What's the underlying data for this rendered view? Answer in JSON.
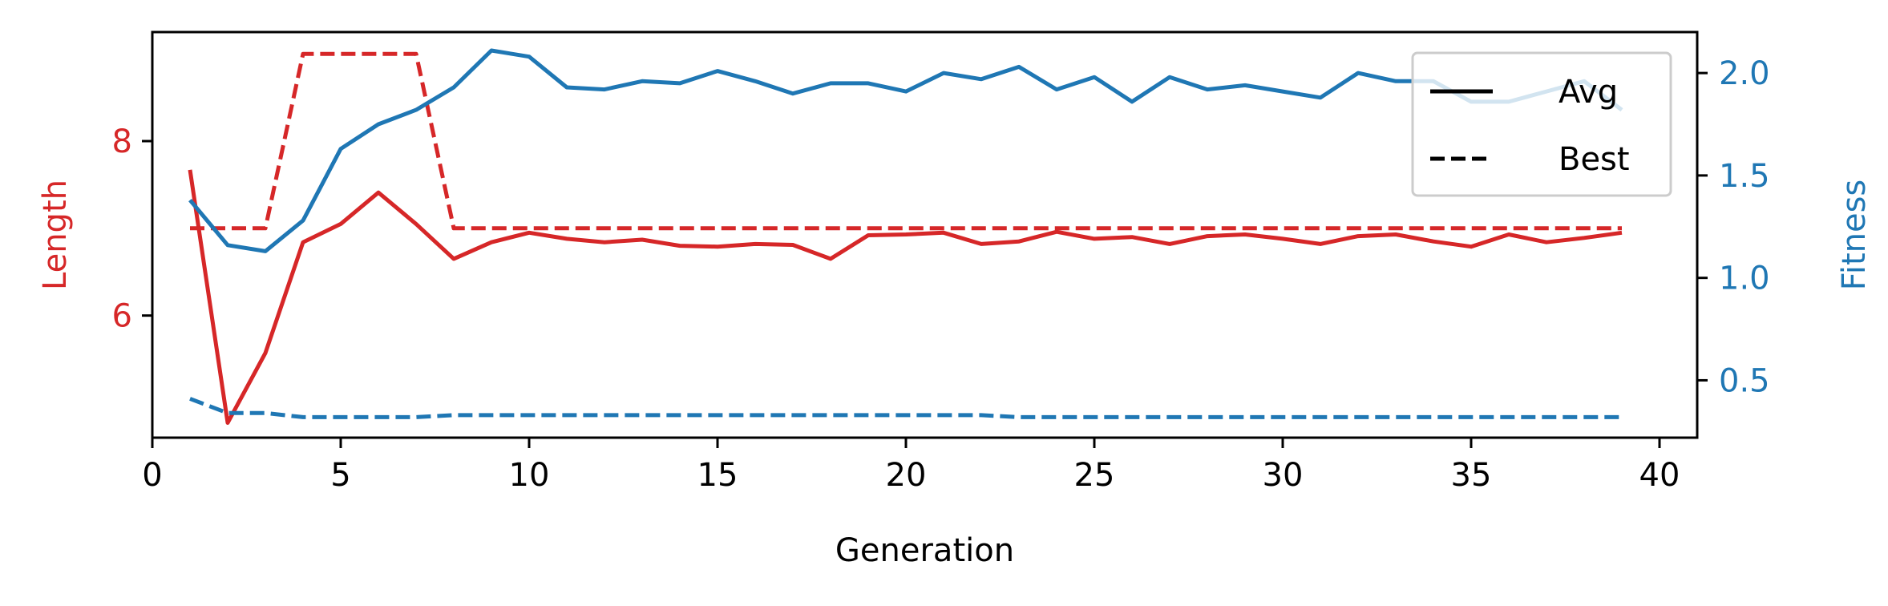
{
  "chart_data": {
    "type": "line",
    "title": "",
    "xlabel": "Generation",
    "ylabel_left": "Length",
    "ylabel_right": "Fitness",
    "xlim": [
      0,
      41
    ],
    "ylim_left": [
      4.6,
      9.25
    ],
    "ylim_right": [
      0.22,
      2.2
    ],
    "x_ticks": [
      0,
      5,
      10,
      15,
      20,
      25,
      30,
      35,
      40
    ],
    "y_left_ticks": [
      6,
      8
    ],
    "y_right_ticks": [
      0.5,
      1.0,
      1.5,
      2.0
    ],
    "y_right_tick_labels": [
      "0.5",
      "1.0",
      "1.5",
      "2.0"
    ],
    "grid": false,
    "legend_placement": "top-right",
    "legend": [
      {
        "label": "Avg",
        "style": "solid"
      },
      {
        "label": "Best",
        "style": "dashed"
      }
    ],
    "colors": {
      "length": "#d62728",
      "fitness": "#1f77b4",
      "axis": "#000000"
    },
    "x": [
      1,
      2,
      3,
      4,
      5,
      6,
      7,
      8,
      9,
      10,
      11,
      12,
      13,
      14,
      15,
      16,
      17,
      18,
      19,
      20,
      21,
      22,
      23,
      24,
      25,
      26,
      27,
      28,
      29,
      30,
      31,
      32,
      33,
      34,
      35,
      36,
      37,
      38,
      39
    ],
    "series": [
      {
        "axis": "left",
        "color": "#d62728",
        "style": "solid",
        "values": [
          7.67,
          4.77,
          5.57,
          6.84,
          7.05,
          7.41,
          7.05,
          6.65,
          6.84,
          6.95,
          6.88,
          6.84,
          6.87,
          6.8,
          6.79,
          6.82,
          6.81,
          6.65,
          6.92,
          6.93,
          6.95,
          6.82,
          6.85,
          6.96,
          6.88,
          6.9,
          6.82,
          6.91,
          6.93,
          6.88,
          6.82,
          6.91,
          6.93,
          6.85,
          6.79,
          6.93,
          6.84,
          6.89,
          6.95
        ]
      },
      {
        "axis": "left",
        "color": "#d62728",
        "style": "dashed",
        "values": [
          7.0,
          7.0,
          7.0,
          9.0,
          9.0,
          9.0,
          9.0,
          7.0,
          7.0,
          7.0,
          7.0,
          7.0,
          7.0,
          7.0,
          7.0,
          7.0,
          7.0,
          7.0,
          7.0,
          7.0,
          7.0,
          7.0,
          7.0,
          7.0,
          7.0,
          7.0,
          7.0,
          7.0,
          7.0,
          7.0,
          7.0,
          7.0,
          7.0,
          7.0,
          7.0,
          7.0,
          7.0,
          7.0,
          7.0
        ]
      },
      {
        "axis": "right",
        "color": "#1f77b4",
        "style": "solid",
        "values": [
          1.38,
          1.16,
          1.13,
          1.28,
          1.63,
          1.75,
          1.82,
          1.93,
          2.11,
          2.08,
          1.93,
          1.92,
          1.96,
          1.95,
          2.01,
          1.96,
          1.9,
          1.95,
          1.95,
          1.91,
          2.0,
          1.97,
          2.03,
          1.92,
          1.98,
          1.86,
          1.98,
          1.92,
          1.94,
          1.91,
          1.88,
          2.0,
          1.96,
          1.96,
          1.86,
          1.86,
          1.91,
          1.96,
          1.82
        ]
      },
      {
        "axis": "right",
        "color": "#1f77b4",
        "style": "dashed",
        "values": [
          0.41,
          0.34,
          0.34,
          0.32,
          0.32,
          0.32,
          0.32,
          0.33,
          0.33,
          0.33,
          0.33,
          0.33,
          0.33,
          0.33,
          0.33,
          0.33,
          0.33,
          0.33,
          0.33,
          0.33,
          0.33,
          0.33,
          0.32,
          0.32,
          0.32,
          0.32,
          0.32,
          0.32,
          0.32,
          0.32,
          0.32,
          0.32,
          0.32,
          0.32,
          0.32,
          0.32,
          0.32,
          0.32,
          0.32
        ]
      }
    ]
  }
}
